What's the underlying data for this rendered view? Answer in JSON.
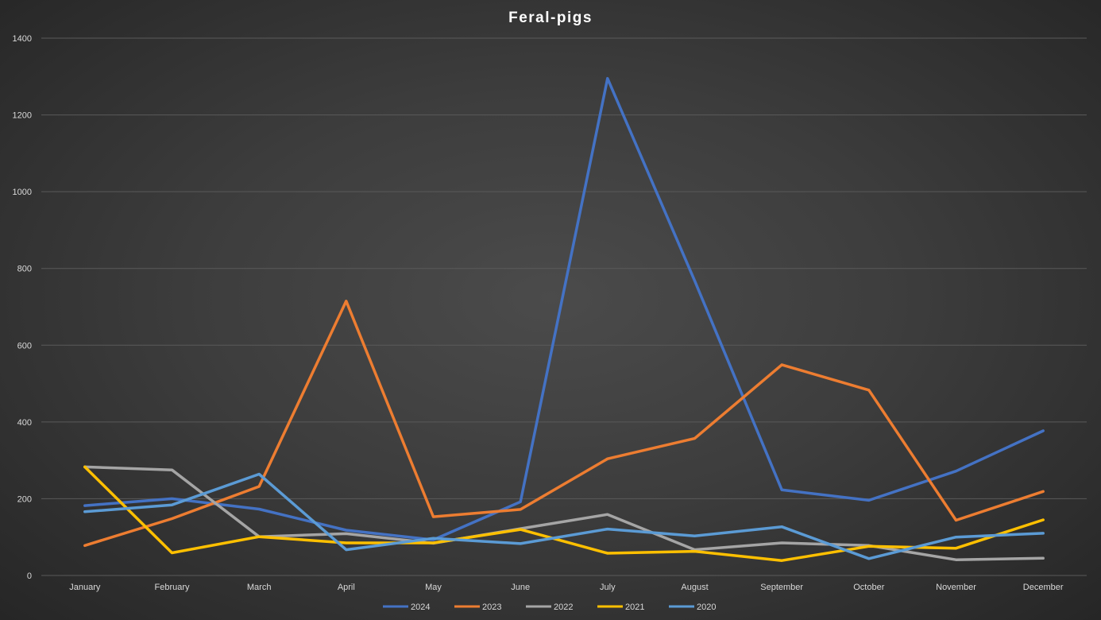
{
  "chart_data": {
    "type": "line",
    "title": "Feral-pigs",
    "xlabel": "",
    "ylabel": "",
    "categories": [
      "January",
      "February",
      "March",
      "April",
      "May",
      "June",
      "July",
      "August",
      "September",
      "October",
      "November",
      "December"
    ],
    "ylim": [
      0,
      1400
    ],
    "yticks": [
      0,
      200,
      400,
      600,
      800,
      1000,
      1200,
      1400
    ],
    "grid": true,
    "legend_position": "bottom",
    "series": [
      {
        "name": "2024",
        "color": "#4472c4",
        "values": [
          182,
          200,
          173,
          118,
          93,
          192,
          1295,
          768,
          223,
          196,
          272,
          377
        ]
      },
      {
        "name": "2023",
        "color": "#ed7d31",
        "values": [
          78,
          148,
          232,
          715,
          153,
          172,
          304,
          357,
          549,
          483,
          144,
          219
        ]
      },
      {
        "name": "2022",
        "color": "#a5a5a5",
        "values": [
          283,
          275,
          101,
          109,
          84,
          122,
          159,
          67,
          85,
          78,
          41,
          45
        ]
      },
      {
        "name": "2021",
        "color": "#ffc000",
        "values": [
          283,
          59,
          101,
          85,
          85,
          120,
          58,
          63,
          39,
          76,
          71,
          145
        ]
      },
      {
        "name": "2020",
        "color": "#5b9bd5",
        "values": [
          166,
          184,
          264,
          67,
          97,
          83,
          121,
          103,
          127,
          44,
          100,
          110
        ]
      }
    ]
  }
}
